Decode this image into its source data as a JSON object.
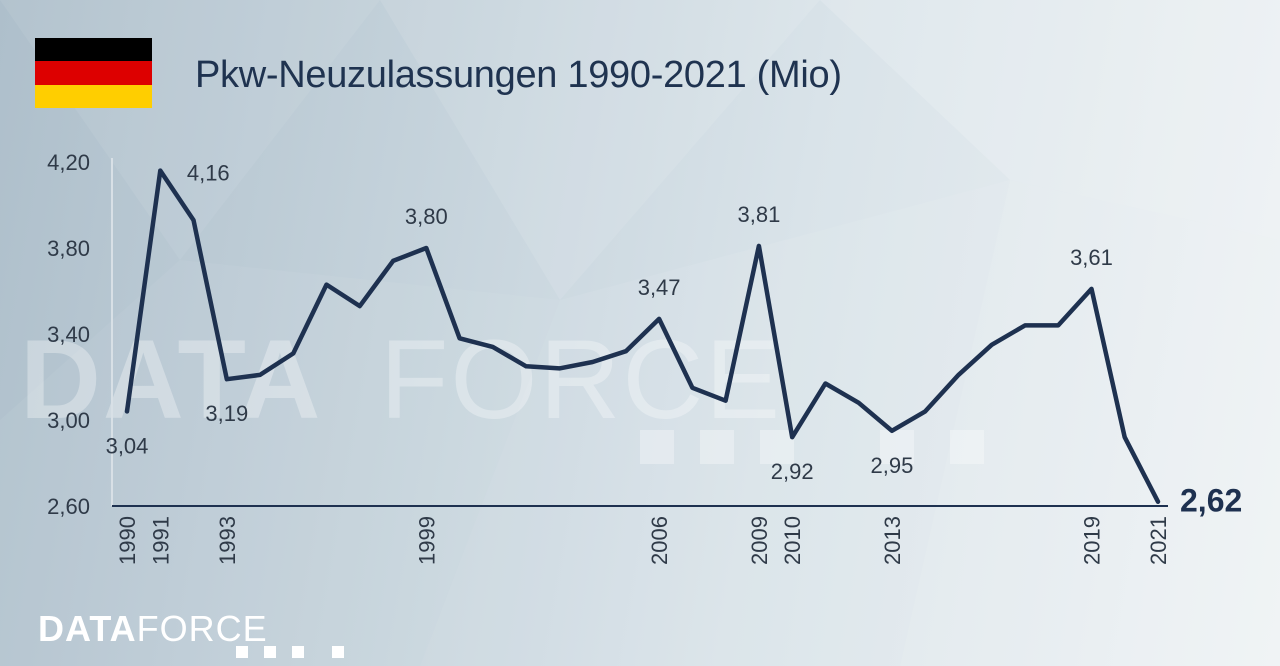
{
  "header": {
    "title": "Pkw-Neuzulassungen 1990-2021 (Mio)",
    "flag_colors": [
      "#000000",
      "#dd0000",
      "#ffce00"
    ]
  },
  "watermark": {
    "bold": "DATA",
    "light": "FORCE"
  },
  "logo": {
    "bold": "DATA",
    "light": "FORCE"
  },
  "colors": {
    "line": "#1e3150",
    "text": "#2f3a48",
    "axis": "#1e3150"
  },
  "chart_data": {
    "type": "line",
    "title": "Pkw-Neuzulassungen 1990-2021 (Mio)",
    "ylim": [
      2.6,
      4.2
    ],
    "yticks": [
      "2,60",
      "3,00",
      "3,40",
      "3,80",
      "4,20"
    ],
    "x_tick_labels": [
      "1990",
      "1991",
      "1993",
      "1999",
      "2006",
      "2009",
      "2010",
      "2013",
      "2019",
      "2021"
    ],
    "grid": false,
    "series": [
      {
        "x": [
          1990,
          1991,
          1992,
          1993,
          1994,
          1995,
          1996,
          1997,
          1998,
          1999,
          2000,
          2001,
          2002,
          2003,
          2004,
          2005,
          2006,
          2007,
          2008,
          2009,
          2010,
          2011,
          2012,
          2013,
          2014,
          2015,
          2016,
          2017,
          2018,
          2019,
          2020,
          2021
        ],
        "values": [
          3.04,
          4.16,
          3.93,
          3.19,
          3.21,
          3.31,
          3.63,
          3.53,
          3.74,
          3.8,
          3.38,
          3.34,
          3.25,
          3.24,
          3.27,
          3.32,
          3.47,
          3.15,
          3.09,
          3.81,
          2.92,
          3.17,
          3.08,
          2.95,
          3.04,
          3.21,
          3.35,
          3.44,
          3.44,
          3.61,
          2.92,
          2.62
        ]
      }
    ],
    "annotations": [
      {
        "year": 1990,
        "label": "3,04",
        "pos": "below"
      },
      {
        "year": 1991,
        "label": "4,16",
        "pos": "right"
      },
      {
        "year": 1993,
        "label": "3,19",
        "pos": "below"
      },
      {
        "year": 1999,
        "label": "3,80",
        "pos": "above"
      },
      {
        "year": 2006,
        "label": "3,47",
        "pos": "above"
      },
      {
        "year": 2009,
        "label": "3,81",
        "pos": "above"
      },
      {
        "year": 2010,
        "label": "2,92",
        "pos": "below"
      },
      {
        "year": 2013,
        "label": "2,95",
        "pos": "below"
      },
      {
        "year": 2019,
        "label": "3,61",
        "pos": "above"
      },
      {
        "year": 2021,
        "label": "2,62",
        "pos": "end"
      }
    ]
  }
}
